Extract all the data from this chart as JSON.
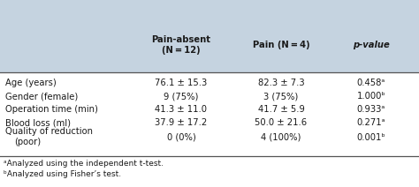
{
  "header_bg": "#c5d3e0",
  "header_text_color": "#1a1a1a",
  "body_bg": "#ffffff",
  "footnote_color": "#1a1a1a",
  "row_labels": [
    "Age (years)",
    "Gender (female)",
    "Operation time (min)",
    "Blood loss (ml)",
    "Quality of reduction\n(poor)"
  ],
  "col1": [
    "76.1 ± 15.3",
    "9 (75%)",
    "41.3 ± 11.0",
    "37.9 ± 17.2",
    "0 (0%)"
  ],
  "col2": [
    "82.3 ± 7.3",
    "3 (75%)",
    "41.7 ± 5.9",
    "50.0 ± 21.6",
    "4 (100%)"
  ],
  "col3": [
    "0.458ᵃ",
    "1.000ᵇ",
    "0.933ᵃ",
    "0.271ᵃ",
    "0.001ᵇ"
  ],
  "footnote1": "ᵃAnalyzed using the independent t-test.",
  "footnote2": "ᵇAnalyzed using Fisher’s test.",
  "font_size": 7.2,
  "footnote_font_size": 6.5
}
